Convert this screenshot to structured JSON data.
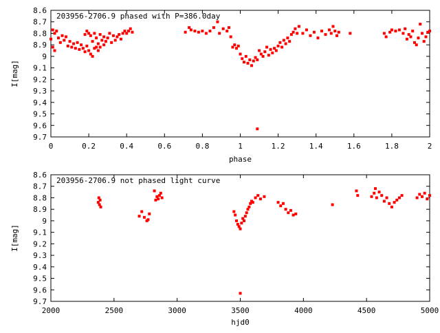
{
  "chart_data": [
    {
      "type": "scatter",
      "title": "203956-2706.9 phased with P=386.0day",
      "xlabel": "phase",
      "ylabel": "I[mag]",
      "xlim": [
        0,
        2
      ],
      "ylim": [
        8.6,
        9.7
      ],
      "y_inverted": true,
      "xticks": [
        "0",
        "0.2",
        "0.4",
        "0.6",
        "0.8",
        "1",
        "1.2",
        "1.4",
        "1.6",
        "1.8",
        "2"
      ],
      "yticks": [
        "8.6",
        "8.7",
        "8.8",
        "8.9",
        "9",
        "9.1",
        "9.2",
        "9.3",
        "9.4",
        "9.5",
        "9.6",
        "9.7"
      ],
      "marker_color": "#ff0000",
      "points": [
        [
          0.0,
          8.85
        ],
        [
          0.01,
          8.77
        ],
        [
          0.01,
          8.92
        ],
        [
          0.02,
          8.95
        ],
        [
          0.02,
          8.8
        ],
        [
          0.03,
          8.78
        ],
        [
          0.04,
          8.84
        ],
        [
          0.05,
          8.88
        ],
        [
          0.06,
          8.82
        ],
        [
          0.07,
          8.86
        ],
        [
          0.08,
          8.83
        ],
        [
          0.09,
          8.91
        ],
        [
          0.1,
          8.87
        ],
        [
          0.11,
          8.92
        ],
        [
          0.12,
          8.89
        ],
        [
          0.13,
          8.93
        ],
        [
          0.14,
          8.88
        ],
        [
          0.15,
          8.94
        ],
        [
          0.16,
          8.9
        ],
        [
          0.17,
          8.93
        ],
        [
          0.18,
          8.81
        ],
        [
          0.18,
          8.96
        ],
        [
          0.19,
          8.91
        ],
        [
          0.19,
          8.78
        ],
        [
          0.2,
          8.8
        ],
        [
          0.2,
          8.95
        ],
        [
          0.21,
          8.82
        ],
        [
          0.21,
          8.98
        ],
        [
          0.22,
          9.0
        ],
        [
          0.22,
          8.87
        ],
        [
          0.23,
          8.93
        ],
        [
          0.23,
          8.8
        ],
        [
          0.24,
          8.92
        ],
        [
          0.24,
          8.84
        ],
        [
          0.25,
          8.89
        ],
        [
          0.25,
          8.95
        ],
        [
          0.26,
          8.81
        ],
        [
          0.26,
          8.92
        ],
        [
          0.27,
          8.86
        ],
        [
          0.28,
          8.9
        ],
        [
          0.28,
          8.83
        ],
        [
          0.29,
          8.87
        ],
        [
          0.3,
          8.84
        ],
        [
          0.31,
          8.8
        ],
        [
          0.32,
          8.88
        ],
        [
          0.33,
          8.82
        ],
        [
          0.34,
          8.86
        ],
        [
          0.35,
          8.83
        ],
        [
          0.36,
          8.81
        ],
        [
          0.37,
          8.85
        ],
        [
          0.38,
          8.8
        ],
        [
          0.39,
          8.78
        ],
        [
          0.4,
          8.8
        ],
        [
          0.41,
          8.78
        ],
        [
          0.42,
          8.76
        ],
        [
          0.43,
          8.79
        ],
        [
          0.71,
          8.79
        ],
        [
          0.73,
          8.75
        ],
        [
          0.74,
          8.77
        ],
        [
          0.76,
          8.78
        ],
        [
          0.78,
          8.79
        ],
        [
          0.8,
          8.78
        ],
        [
          0.82,
          8.8
        ],
        [
          0.84,
          8.78
        ],
        [
          0.86,
          8.75
        ],
        [
          0.88,
          8.7
        ],
        [
          0.89,
          8.8
        ],
        [
          0.91,
          8.76
        ],
        [
          0.93,
          8.78
        ],
        [
          0.94,
          8.75
        ],
        [
          0.95,
          8.83
        ],
        [
          0.96,
          8.92
        ],
        [
          0.97,
          8.9
        ],
        [
          0.98,
          8.93
        ],
        [
          0.99,
          8.91
        ],
        [
          1.0,
          8.98
        ],
        [
          1.01,
          9.02
        ],
        [
          1.02,
          9.05
        ],
        [
          1.03,
          9.0
        ],
        [
          1.04,
          9.06
        ],
        [
          1.05,
          9.03
        ],
        [
          1.06,
          9.08
        ],
        [
          1.07,
          9.04
        ],
        [
          1.08,
          9.01
        ],
        [
          1.09,
          9.03
        ],
        [
          1.1,
          8.95
        ],
        [
          1.11,
          8.98
        ],
        [
          1.12,
          9.0
        ],
        [
          1.13,
          8.96
        ],
        [
          1.14,
          8.92
        ],
        [
          1.15,
          8.99
        ],
        [
          1.16,
          8.94
        ],
        [
          1.17,
          8.97
        ],
        [
          1.18,
          8.93
        ],
        [
          1.19,
          8.95
        ],
        [
          1.2,
          8.91
        ],
        [
          1.21,
          8.88
        ],
        [
          1.22,
          8.92
        ],
        [
          1.23,
          8.86
        ],
        [
          1.24,
          8.89
        ],
        [
          1.25,
          8.84
        ],
        [
          1.26,
          8.87
        ],
        [
          1.27,
          8.81
        ],
        [
          1.28,
          8.79
        ],
        [
          1.29,
          8.76
        ],
        [
          1.3,
          8.8
        ],
        [
          1.31,
          8.74
        ],
        [
          1.33,
          8.8
        ],
        [
          1.35,
          8.77
        ],
        [
          1.37,
          8.82
        ],
        [
          1.39,
          8.79
        ],
        [
          1.41,
          8.84
        ],
        [
          1.43,
          8.78
        ],
        [
          1.45,
          8.81
        ],
        [
          1.47,
          8.77
        ],
        [
          1.48,
          8.8
        ],
        [
          1.49,
          8.74
        ],
        [
          1.5,
          8.78
        ],
        [
          1.51,
          8.82
        ],
        [
          1.52,
          8.79
        ],
        [
          1.09,
          9.63
        ],
        [
          1.58,
          8.8
        ],
        [
          1.76,
          8.8
        ],
        [
          1.77,
          8.83
        ],
        [
          1.79,
          8.79
        ],
        [
          1.8,
          8.77
        ],
        [
          1.82,
          8.78
        ],
        [
          1.84,
          8.77
        ],
        [
          1.86,
          8.8
        ],
        [
          1.87,
          8.76
        ],
        [
          1.88,
          8.85
        ],
        [
          1.89,
          8.81
        ],
        [
          1.9,
          8.83
        ],
        [
          1.91,
          8.78
        ],
        [
          1.92,
          8.88
        ],
        [
          1.93,
          8.9
        ],
        [
          1.94,
          8.84
        ],
        [
          1.95,
          8.72
        ],
        [
          1.96,
          8.8
        ],
        [
          1.97,
          8.87
        ],
        [
          1.98,
          8.83
        ],
        [
          1.99,
          8.79
        ],
        [
          2.0,
          8.78
        ]
      ]
    },
    {
      "type": "scatter",
      "title": "203956-2706.9 not phased light curve",
      "xlabel": "hjd0",
      "ylabel": "I[mag]",
      "xlim": [
        2000,
        5000
      ],
      "ylim": [
        8.6,
        9.7
      ],
      "y_inverted": true,
      "xticks": [
        "2000",
        "2500",
        "3000",
        "3500",
        "4000",
        "4500",
        "5000"
      ],
      "yticks": [
        "8.6",
        "8.7",
        "8.8",
        "8.9",
        "9",
        "9.1",
        "9.2",
        "9.3",
        "9.4",
        "9.5",
        "9.6",
        "9.7"
      ],
      "marker_color": "#ff0000",
      "points": [
        [
          2375,
          8.84
        ],
        [
          2380,
          8.8
        ],
        [
          2385,
          8.86
        ],
        [
          2390,
          8.82
        ],
        [
          2395,
          8.88
        ],
        [
          2700,
          8.96
        ],
        [
          2720,
          8.92
        ],
        [
          2740,
          8.97
        ],
        [
          2760,
          9.0
        ],
        [
          2770,
          8.99
        ],
        [
          2780,
          8.94
        ],
        [
          2820,
          8.74
        ],
        [
          2830,
          8.82
        ],
        [
          2840,
          8.79
        ],
        [
          2850,
          8.81
        ],
        [
          2860,
          8.78
        ],
        [
          2870,
          8.76
        ],
        [
          2880,
          8.8
        ],
        [
          3450,
          8.92
        ],
        [
          3460,
          8.95
        ],
        [
          3470,
          9.0
        ],
        [
          3480,
          9.03
        ],
        [
          3490,
          9.05
        ],
        [
          3500,
          9.07
        ],
        [
          3510,
          9.02
        ],
        [
          3520,
          8.98
        ],
        [
          3530,
          9.0
        ],
        [
          3540,
          8.96
        ],
        [
          3550,
          8.93
        ],
        [
          3560,
          8.9
        ],
        [
          3570,
          8.88
        ],
        [
          3580,
          8.85
        ],
        [
          3590,
          8.83
        ],
        [
          3600,
          8.84
        ],
        [
          3620,
          8.8
        ],
        [
          3640,
          8.78
        ],
        [
          3660,
          8.81
        ],
        [
          3690,
          8.79
        ],
        [
          3500,
          9.63
        ],
        [
          3800,
          8.84
        ],
        [
          3820,
          8.87
        ],
        [
          3840,
          8.85
        ],
        [
          3860,
          8.9
        ],
        [
          3880,
          8.93
        ],
        [
          3900,
          8.91
        ],
        [
          3920,
          8.95
        ],
        [
          3940,
          8.94
        ],
        [
          4230,
          8.86
        ],
        [
          4420,
          8.74
        ],
        [
          4430,
          8.78
        ],
        [
          4540,
          8.79
        ],
        [
          4560,
          8.76
        ],
        [
          4570,
          8.72
        ],
        [
          4580,
          8.8
        ],
        [
          4600,
          8.75
        ],
        [
          4620,
          8.78
        ],
        [
          4640,
          8.83
        ],
        [
          4660,
          8.8
        ],
        [
          4680,
          8.85
        ],
        [
          4700,
          8.88
        ],
        [
          4720,
          8.84
        ],
        [
          4740,
          8.82
        ],
        [
          4760,
          8.8
        ],
        [
          4780,
          8.78
        ],
        [
          4900,
          8.8
        ],
        [
          4920,
          8.77
        ],
        [
          4940,
          8.79
        ],
        [
          4960,
          8.76
        ],
        [
          4980,
          8.81
        ],
        [
          5000,
          8.78
        ]
      ]
    }
  ]
}
